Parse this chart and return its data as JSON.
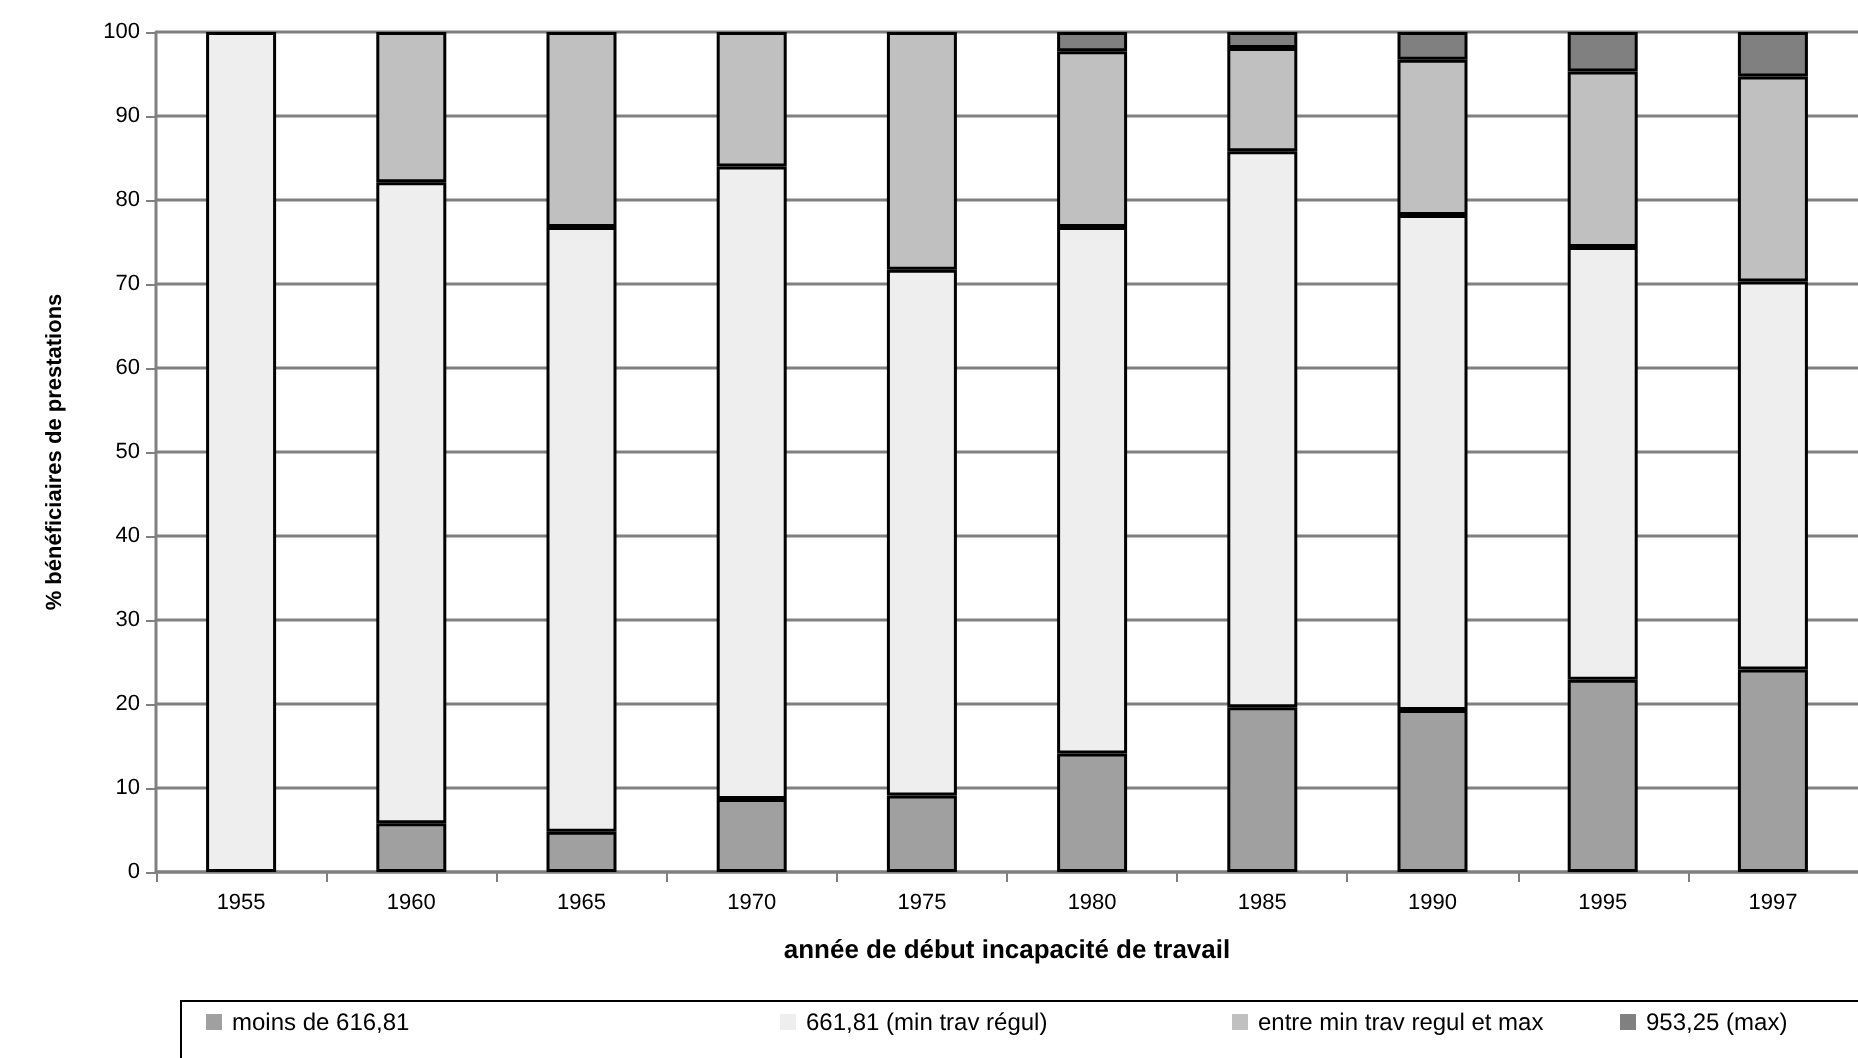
{
  "chart_data": {
    "type": "bar",
    "stacked": true,
    "xlabel": "année de début incapacité de travail",
    "ylabel": "% bénéficiaires de prestations",
    "categories": [
      "1955",
      "1960",
      "1965",
      "1970",
      "1975",
      "1980",
      "1985",
      "1990",
      "1995",
      "1997"
    ],
    "series": [
      {
        "name": "moins de 616,81",
        "color": "#a0a0a0",
        "values": [
          0,
          5.8,
          4.8,
          8.7,
          9.1,
          14.1,
          19.6,
          19.3,
          22.9,
          24.1
        ]
      },
      {
        "name": "661,81 (min trav régul)",
        "color": "#eeeeee",
        "values": [
          100,
          76.3,
          72.0,
          75.3,
          62.6,
          62.7,
          66.2,
          58.9,
          51.5,
          46.2
        ]
      },
      {
        "name": "entre min trav regul et max",
        "color": "#c0c0c0",
        "values": [
          0,
          17.9,
          23.2,
          16.0,
          28.3,
          20.9,
          12.3,
          18.5,
          20.9,
          24.4
        ]
      },
      {
        "name": "953,25 (max)",
        "color": "#808080",
        "values": [
          0,
          0,
          0,
          0,
          0,
          2.3,
          1.9,
          3.3,
          4.7,
          5.3
        ]
      }
    ],
    "ylim": [
      0,
      100
    ],
    "yticks": [
      0,
      10,
      20,
      30,
      40,
      50,
      60,
      70,
      80,
      90,
      100
    ],
    "grid": "y",
    "legend": "bottom"
  }
}
